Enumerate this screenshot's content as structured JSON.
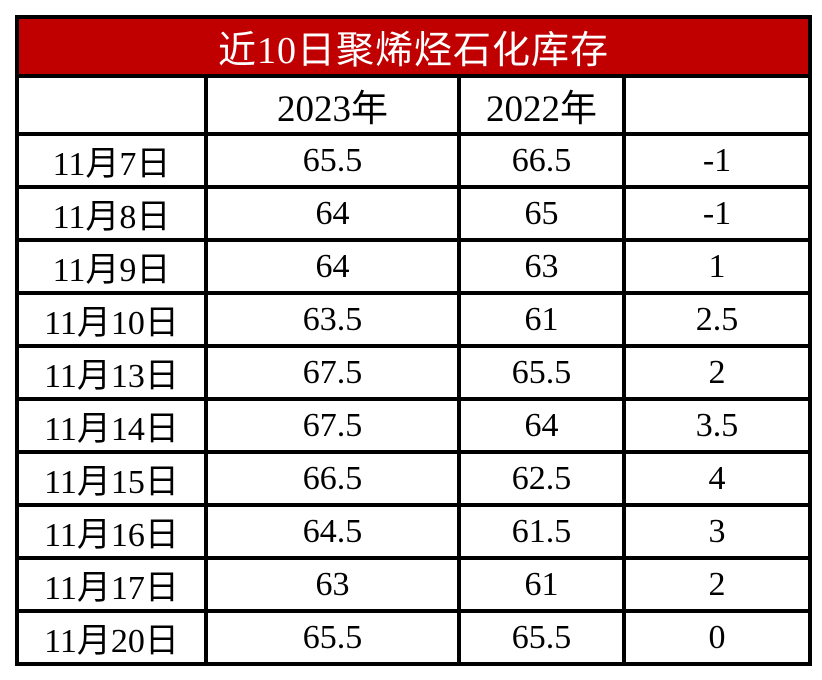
{
  "title": "近10日聚烯烃石化库存",
  "colors": {
    "header_bg": "#C00000",
    "header_text": "#FFFFFF",
    "border": "#000000",
    "body_bg": "#FFFFFF",
    "text": "#000000"
  },
  "chart_data": {
    "type": "table",
    "title": "近10日聚烯烃石化库存",
    "columns": [
      "",
      "2023年",
      "2022年",
      ""
    ],
    "dates": [
      "11月7日",
      "11月8日",
      "11月9日",
      "11月10日",
      "11月13日",
      "11月14日",
      "11月15日",
      "11月16日",
      "11月17日",
      "11月20日"
    ],
    "series": [
      {
        "name": "2023年",
        "values": [
          65.5,
          64,
          64,
          63.5,
          67.5,
          67.5,
          66.5,
          64.5,
          63,
          65.5
        ]
      },
      {
        "name": "2022年",
        "values": [
          66.5,
          65,
          63,
          61,
          65.5,
          64,
          62.5,
          61.5,
          61,
          65.5
        ]
      },
      {
        "name": "",
        "values": [
          -1,
          -1,
          1,
          2.5,
          2,
          3.5,
          4,
          3,
          2,
          0
        ]
      }
    ],
    "display_rows": [
      [
        "11月7日",
        "65.5",
        "66.5",
        "-1"
      ],
      [
        "11月8日",
        "64",
        "65",
        "-1"
      ],
      [
        "11月9日",
        "64",
        "63",
        "1"
      ],
      [
        "11月10日",
        "63.5",
        "61",
        "2.5"
      ],
      [
        "11月13日",
        "67.5",
        "65.5",
        "2"
      ],
      [
        "11月14日",
        "67.5",
        "64",
        "3.5"
      ],
      [
        "11月15日",
        "66.5",
        "62.5",
        "4"
      ],
      [
        "11月16日",
        "64.5",
        "61.5",
        "3"
      ],
      [
        "11月17日",
        "63",
        "61",
        "2"
      ],
      [
        "11月20日",
        "65.5",
        "65.5",
        "0"
      ]
    ]
  }
}
